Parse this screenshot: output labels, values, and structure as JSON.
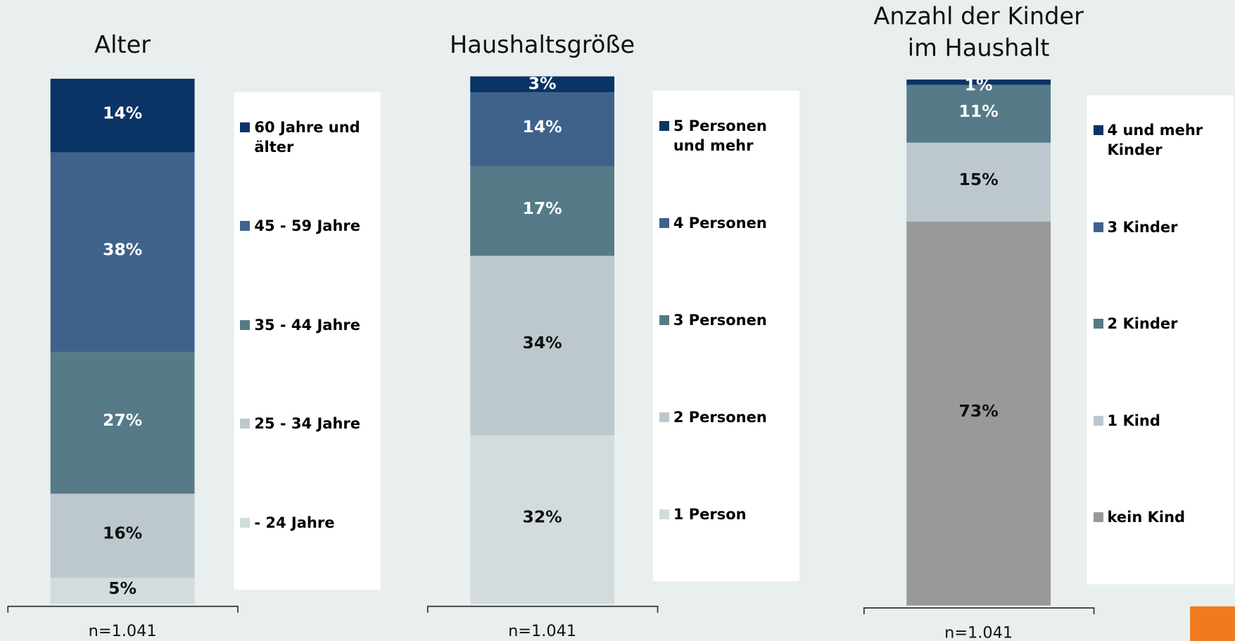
{
  "chart_data": [
    {
      "type": "stacked_bar",
      "title": "Alter",
      "annotation": "n=1.041",
      "series": [
        {
          "name": "- 24 Jahre",
          "color": "#d3dcdc",
          "values": [
            5
          ],
          "value_labels": [
            "5%"
          ]
        },
        {
          "name": "25 - 34 Jahre",
          "color": "#bcc8cd",
          "values": [
            16
          ],
          "value_labels": [
            "16%"
          ]
        },
        {
          "name": "35 - 44 Jahre",
          "color": "#567a87",
          "values": [
            27
          ],
          "value_labels": [
            "27%"
          ]
        },
        {
          "name": "45 - 59 Jahre",
          "color": "#3f628c",
          "values": [
            38
          ],
          "value_labels": [
            "38%"
          ]
        },
        {
          "name": "60 Jahre und älter",
          "color": "#0a3366",
          "values": [
            14
          ],
          "value_labels": [
            "14%"
          ]
        }
      ]
    },
    {
      "type": "stacked_bar",
      "title": "Haushaltsgröße",
      "annotation": "n=1.041",
      "series": [
        {
          "name": "1 Person",
          "color": "#d3dcdc",
          "values": [
            32
          ],
          "value_labels": [
            "32%"
          ]
        },
        {
          "name": "2 Personen",
          "color": "#bcc8cd",
          "values": [
            34
          ],
          "value_labels": [
            "34%"
          ]
        },
        {
          "name": "3 Personen",
          "color": "#567a87",
          "values": [
            17
          ],
          "value_labels": [
            "17%"
          ]
        },
        {
          "name": "4 Personen",
          "color": "#3f628c",
          "values": [
            14
          ],
          "value_labels": [
            "14%"
          ]
        },
        {
          "name": "5 Personen und mehr",
          "color": "#0a3366",
          "values": [
            3
          ],
          "value_labels": [
            "3%"
          ]
        }
      ]
    },
    {
      "type": "stacked_bar",
      "title": "Anzahl der Kinder im Haushalt",
      "annotation": "n=1.041",
      "series": [
        {
          "name": "kein Kind",
          "color": "#999999",
          "values": [
            73
          ],
          "value_labels": [
            "73%"
          ]
        },
        {
          "name": "1 Kind",
          "color": "#bcc8cd",
          "values": [
            15
          ],
          "value_labels": [
            "15%"
          ]
        },
        {
          "name": "2 Kinder",
          "color": "#567a87",
          "values": [
            11
          ],
          "value_labels": [
            "11%"
          ]
        },
        {
          "name": "3 Kinder",
          "color": "#3f628c",
          "values": [
            0
          ],
          "value_labels": [
            null
          ]
        },
        {
          "name": "4 und mehr Kinder",
          "color": "#0a3366",
          "values": [
            1
          ],
          "value_labels": [
            "1%"
          ]
        }
      ]
    }
  ]
}
